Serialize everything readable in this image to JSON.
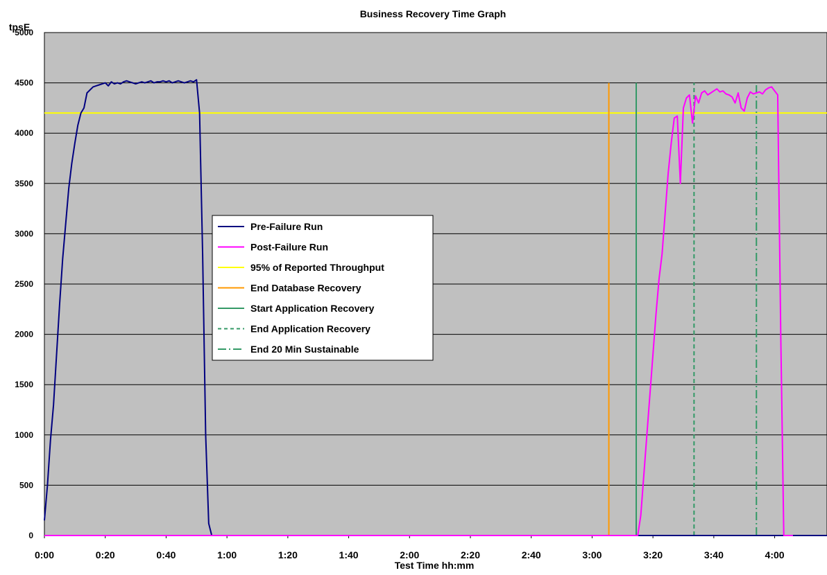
{
  "chart_data": {
    "type": "line",
    "title": "Business Recovery  Time Graph",
    "xlabel": "Test Time hh:mm",
    "ylabel": "tpsE",
    "x_unit": "minutes",
    "xlim": [
      0,
      260
    ],
    "ylim": [
      0,
      5000
    ],
    "x_ticks": [
      {
        "value": 0,
        "label": "0:00"
      },
      {
        "value": 20,
        "label": "0:20"
      },
      {
        "value": 40,
        "label": "0:40"
      },
      {
        "value": 60,
        "label": "1:00"
      },
      {
        "value": 80,
        "label": "1:20"
      },
      {
        "value": 100,
        "label": "1:40"
      },
      {
        "value": 120,
        "label": "2:00"
      },
      {
        "value": 140,
        "label": "2:20"
      },
      {
        "value": 160,
        "label": "2:40"
      },
      {
        "value": 180,
        "label": "3:00"
      },
      {
        "value": 200,
        "label": "3:20"
      },
      {
        "value": 220,
        "label": "3:40"
      },
      {
        "value": 240,
        "label": "4:00"
      }
    ],
    "y_ticks": [
      0,
      500,
      1000,
      1500,
      2000,
      2500,
      3000,
      3500,
      4000,
      4500,
      5000
    ],
    "grid": "horizontal",
    "plot_background": "#c0c0c0",
    "series": [
      {
        "name": "Pre-Failure Run",
        "color": "#000080",
        "style": "solid",
        "points": [
          [
            0,
            150
          ],
          [
            1,
            500
          ],
          [
            2,
            950
          ],
          [
            3,
            1300
          ],
          [
            4,
            1800
          ],
          [
            5,
            2300
          ],
          [
            6,
            2750
          ],
          [
            7,
            3100
          ],
          [
            8,
            3450
          ],
          [
            9,
            3700
          ],
          [
            10,
            3900
          ],
          [
            11,
            4080
          ],
          [
            12,
            4200
          ],
          [
            13,
            4250
          ],
          [
            14,
            4400
          ],
          [
            15,
            4430
          ],
          [
            16,
            4460
          ],
          [
            17,
            4470
          ],
          [
            18,
            4480
          ],
          [
            19,
            4490
          ],
          [
            20,
            4500
          ],
          [
            21,
            4470
          ],
          [
            22,
            4510
          ],
          [
            23,
            4490
          ],
          [
            24,
            4500
          ],
          [
            25,
            4490
          ],
          [
            26,
            4510
          ],
          [
            27,
            4520
          ],
          [
            28,
            4510
          ],
          [
            29,
            4500
          ],
          [
            30,
            4490
          ],
          [
            31,
            4500
          ],
          [
            32,
            4510
          ],
          [
            33,
            4500
          ],
          [
            34,
            4510
          ],
          [
            35,
            4520
          ],
          [
            36,
            4500
          ],
          [
            37,
            4510
          ],
          [
            38,
            4510
          ],
          [
            39,
            4520
          ],
          [
            40,
            4510
          ],
          [
            41,
            4520
          ],
          [
            42,
            4500
          ],
          [
            43,
            4510
          ],
          [
            44,
            4520
          ],
          [
            45,
            4510
          ],
          [
            46,
            4500
          ],
          [
            47,
            4510
          ],
          [
            48,
            4520
          ],
          [
            49,
            4510
          ],
          [
            50,
            4530
          ],
          [
            51,
            4200
          ],
          [
            52,
            2800
          ],
          [
            53,
            1000
          ],
          [
            54,
            120
          ],
          [
            55,
            0
          ],
          [
            260,
            0
          ]
        ]
      },
      {
        "name": "Post-Failure Run",
        "color": "#ff00ff",
        "style": "solid",
        "points": [
          [
            0,
            0
          ],
          [
            195,
            0
          ],
          [
            196,
            200
          ],
          [
            197,
            600
          ],
          [
            198,
            1000
          ],
          [
            199,
            1400
          ],
          [
            200,
            1800
          ],
          [
            201,
            2200
          ],
          [
            202,
            2550
          ],
          [
            203,
            2800
          ],
          [
            204,
            3200
          ],
          [
            205,
            3600
          ],
          [
            206,
            3900
          ],
          [
            207,
            4150
          ],
          [
            208,
            4170
          ],
          [
            209,
            3500
          ],
          [
            210,
            4250
          ],
          [
            211,
            4350
          ],
          [
            212,
            4380
          ],
          [
            213,
            4100
          ],
          [
            214,
            4370
          ],
          [
            215,
            4300
          ],
          [
            216,
            4400
          ],
          [
            217,
            4420
          ],
          [
            218,
            4380
          ],
          [
            219,
            4400
          ],
          [
            220,
            4420
          ],
          [
            221,
            4440
          ],
          [
            222,
            4410
          ],
          [
            223,
            4420
          ],
          [
            224,
            4390
          ],
          [
            225,
            4380
          ],
          [
            226,
            4360
          ],
          [
            227,
            4300
          ],
          [
            228,
            4400
          ],
          [
            229,
            4250
          ],
          [
            230,
            4220
          ],
          [
            231,
            4350
          ],
          [
            232,
            4410
          ],
          [
            233,
            4390
          ],
          [
            234,
            4400
          ],
          [
            235,
            4410
          ],
          [
            236,
            4390
          ],
          [
            237,
            4430
          ],
          [
            238,
            4450
          ],
          [
            239,
            4460
          ],
          [
            240,
            4420
          ],
          [
            241,
            4380
          ],
          [
            242,
            2000
          ],
          [
            243,
            0
          ],
          [
            246,
            0
          ]
        ]
      },
      {
        "name": "95% of Reported Throughput",
        "color": "#ffff00",
        "style": "solid",
        "points": [
          [
            0,
            4200
          ],
          [
            260,
            4200
          ]
        ]
      },
      {
        "name": "End Database Recovery",
        "color": "#ff9900",
        "style": "solid",
        "points": [
          [
            185.5,
            0
          ],
          [
            185.5,
            4500
          ]
        ]
      },
      {
        "name": "Start Application  Recovery",
        "color": "#339966",
        "style": "solid",
        "points": [
          [
            194.5,
            0
          ],
          [
            194.5,
            4500
          ]
        ]
      },
      {
        "name": "End Application  Recovery",
        "color": "#339966",
        "style": "dashed",
        "points": [
          [
            213.5,
            0
          ],
          [
            213.5,
            4500
          ]
        ]
      },
      {
        "name": "End 20 Min Sustainable",
        "color": "#339966",
        "style": "dashdot",
        "points": [
          [
            234,
            0
          ],
          [
            234,
            4500
          ]
        ]
      }
    ],
    "legend_placement": "center-left"
  }
}
